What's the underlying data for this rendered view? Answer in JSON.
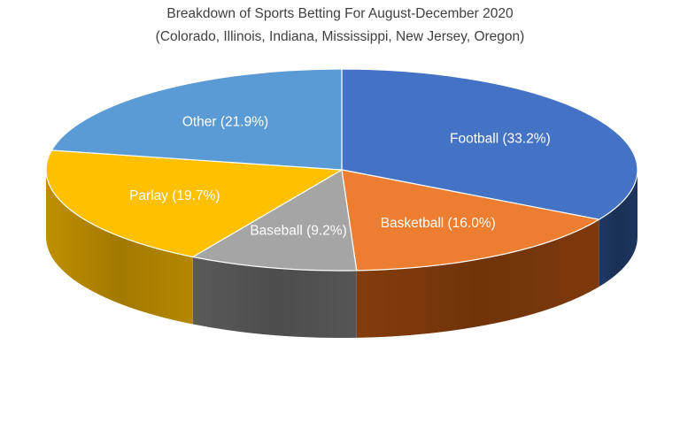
{
  "chart_data": {
    "type": "pie",
    "title": "Breakdown of Sports Betting For August-December 2020",
    "subtitle": "(Colorado, Illinois, Indiana, Mississippi, New Jersey, Oregon)",
    "three_d": true,
    "legend": "none",
    "slices": [
      {
        "label": "Football",
        "value": 33.2,
        "display": "Football (33.2%)",
        "color": "#4472C4",
        "side_color": "#1F3864"
      },
      {
        "label": "Basketball",
        "value": 16.0,
        "display": "Basketball (16.0%)",
        "color": "#ED7D31",
        "side_color": "#843C0C"
      },
      {
        "label": "Baseball",
        "value": 9.2,
        "display": "Baseball (9.2%)",
        "color": "#A5A5A5",
        "side_color": "#5A5A5A"
      },
      {
        "label": "Parlay",
        "value": 19.7,
        "display": "Parlay (19.7%)",
        "color": "#FFC000",
        "side_color": "#BF8F00"
      },
      {
        "label": "Other",
        "value": 21.9,
        "display": "Other (21.9%)",
        "color": "#5B9BD5",
        "side_color": "#2E5F8A"
      }
    ]
  }
}
